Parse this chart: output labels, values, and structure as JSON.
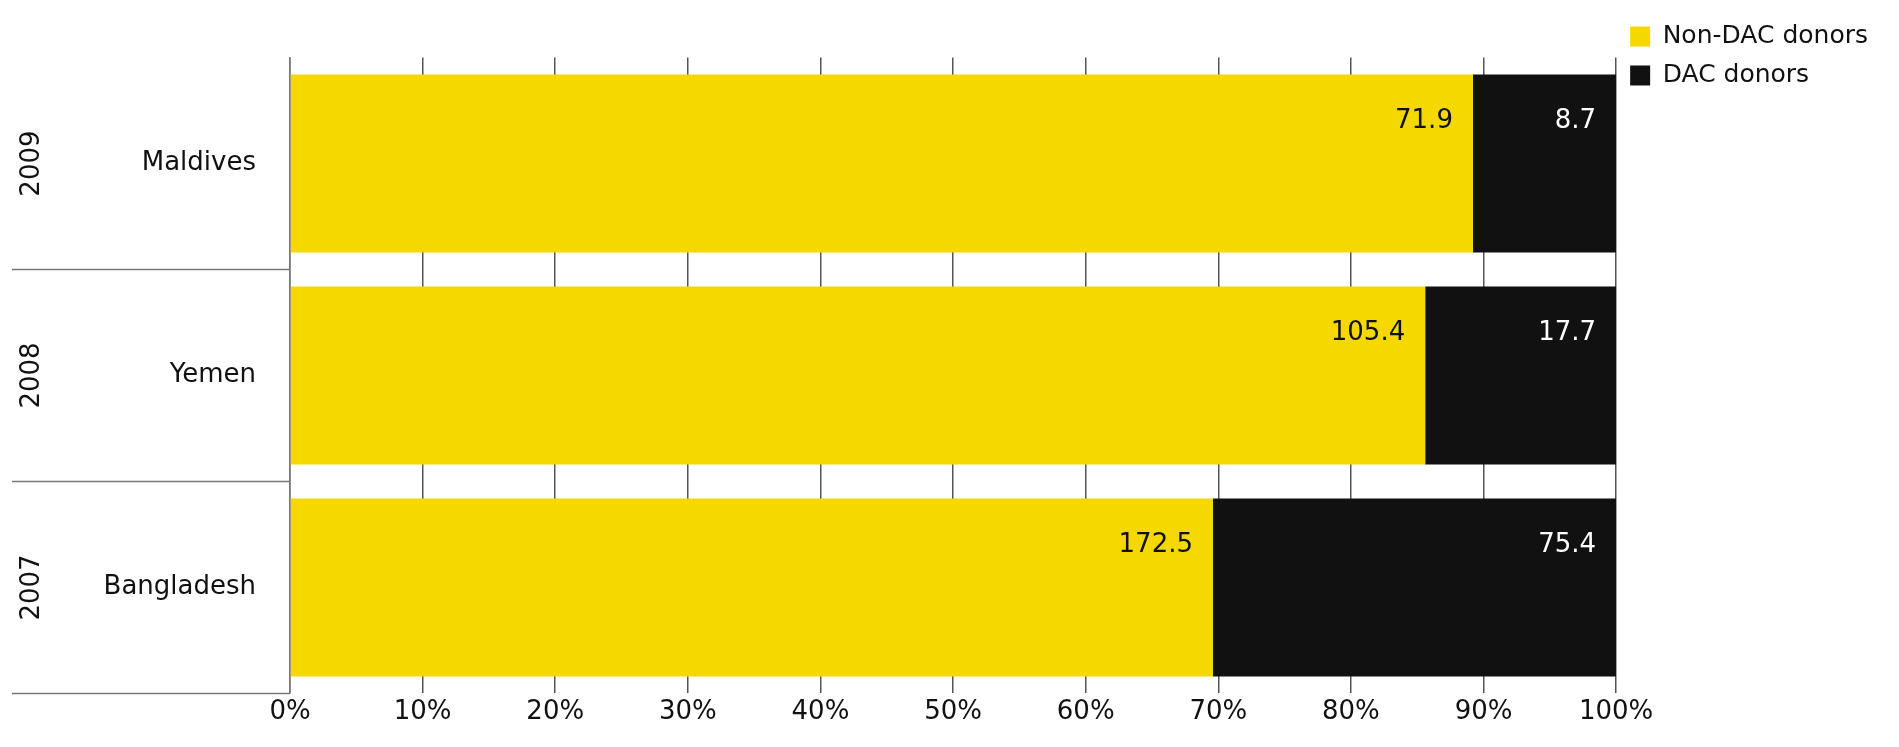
{
  "chart_data": {
    "type": "bar",
    "orientation": "horizontal",
    "stacked": true,
    "categories": [
      "Maldives",
      "Yemen",
      "Bangladesh"
    ],
    "series": [
      {
        "name": "Non-DAC donors",
        "color": "#f5d800",
        "values": [
          89.2,
          85.6,
          69.6
        ]
      },
      {
        "name": "DAC donors",
        "color": "#111111",
        "values": [
          10.8,
          14.4,
          30.4
        ]
      }
    ],
    "xlim": [
      0,
      100
    ],
    "xticks": [
      {
        "value": 0,
        "label": "0%"
      },
      {
        "value": 10,
        "label": "10%"
      },
      {
        "value": 20,
        "label": "20%"
      },
      {
        "value": 30,
        "label": "30%"
      },
      {
        "value": 40,
        "label": "40%"
      },
      {
        "value": 50,
        "label": "50%"
      },
      {
        "value": 60,
        "label": "60%"
      },
      {
        "value": 70,
        "label": "70%"
      },
      {
        "value": 80,
        "label": "80%"
      },
      {
        "value": 90,
        "label": "90%"
      },
      {
        "value": 100,
        "label": "100%"
      }
    ],
    "annotations": [
      "2009",
      "2008",
      "2007",
      {
        "text": "71.9",
        "x": 89.2,
        "y": "Maldives"
      },
      {
        "text": "8.7",
        "x": 100,
        "y": "Maldives"
      },
      {
        "text": "105.4",
        "x": 85.6,
        "y": "Yemen"
      },
      {
        "text": "17.7",
        "x": 100,
        "y": "Yemen"
      },
      {
        "text": "172.5",
        "x": 69.6,
        "y": "Bangladesh"
      },
      {
        "text": "75.4",
        "x": 100,
        "y": "Bangladesh"
      }
    ],
    "grid": "x",
    "legend": "top right"
  }
}
